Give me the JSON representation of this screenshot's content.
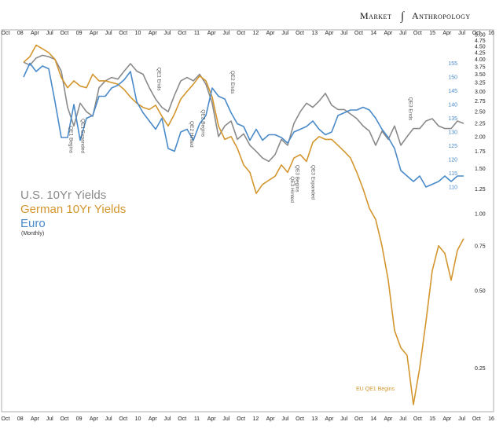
{
  "header": {
    "brand_left": "Market",
    "brand_right": "Anthropology"
  },
  "legend": {
    "us": "U.S. 10Yr Yields",
    "de": "German 10Yr Yields",
    "eu": "Euro",
    "sub": "(Monthly)"
  },
  "chart_data": {
    "type": "line",
    "x_ticks": [
      "Oct",
      "08",
      "Apr",
      "Jul",
      "Oct",
      "09",
      "Apr",
      "Jul",
      "Oct",
      "10",
      "Apr",
      "Jul",
      "Oct",
      "11",
      "Apr",
      "Jul",
      "Oct",
      "12",
      "Apr",
      "Jul",
      "Oct",
      "13",
      "Apr",
      "Jul",
      "Oct",
      "14",
      "Apr",
      "Jul",
      "Oct",
      "15",
      "Apr",
      "Jul",
      "Oct",
      "16"
    ],
    "y_left_ticks": [
      "5.00",
      "4.75",
      "4.50",
      "4.25",
      "4.00",
      "3.75",
      "3.50",
      "3.25",
      "3.00",
      "2.75",
      "2.50",
      "2.25",
      "2.00",
      "1.75",
      "1.50",
      "1.25",
      "1.00",
      "0.75",
      "0.50",
      "0.25"
    ],
    "y_left_scale": "log",
    "y_left_range": [
      0.2,
      5.0
    ],
    "y_right_ticks": [
      "155",
      "150",
      "145",
      "140",
      "135",
      "130",
      "125",
      "120",
      "115",
      "110"
    ],
    "y_right_range": [
      108,
      158
    ],
    "annotations": [
      {
        "text": "QE1 Begins",
        "x": 22.0,
        "y": 2.2
      },
      {
        "text": "QE1 Expanded",
        "x": 27.5,
        "y": 2.35
      },
      {
        "text": "QE1 Ends",
        "x": 64.0,
        "y": 3.72
      },
      {
        "text": "QE2 Hinted",
        "x": 79.5,
        "y": 2.3
      },
      {
        "text": "QE2 Begins",
        "x": 85.0,
        "y": 2.55
      },
      {
        "text": "QE2 Ends",
        "x": 99.0,
        "y": 3.62
      },
      {
        "text": "QE3 Hinted",
        "x": 127.5,
        "y": 1.4
      },
      {
        "text": "QE3 Begins",
        "x": 130.0,
        "y": 1.55
      },
      {
        "text": "QE3 Expanded",
        "x": 137.5,
        "y": 1.55
      },
      {
        "text": "QE3 Ends",
        "x": 184.0,
        "y": 2.85
      },
      {
        "text": "EU QE1 Begins",
        "x": 180.0,
        "y": 0.21
      }
    ],
    "series": [
      {
        "name": "U.S. 10Yr Yields",
        "color": "#8a8a8a",
        "axis": "left",
        "x": [
          0,
          3,
          6,
          9,
          12,
          15,
          18,
          21,
          24,
          27,
          30,
          33,
          36,
          39,
          42,
          45,
          48,
          51,
          54,
          57,
          60,
          63,
          66,
          69,
          72,
          75,
          78,
          81,
          84,
          87,
          90,
          93,
          96,
          99,
          102,
          105,
          108,
          111,
          114,
          117,
          120,
          123,
          126,
          129,
          132,
          135,
          138,
          141,
          144,
          147,
          150,
          153,
          156,
          159,
          162,
          165,
          168,
          171,
          174,
          177,
          180,
          183,
          186,
          189,
          192,
          195,
          198,
          201,
          204,
          207,
          210
        ],
        "y": [
          3.9,
          3.8,
          4.05,
          4.15,
          4.1,
          4.0,
          3.6,
          2.6,
          2.2,
          2.7,
          2.5,
          2.4,
          3.1,
          3.3,
          3.4,
          3.35,
          3.6,
          3.85,
          3.6,
          3.5,
          3.1,
          2.8,
          2.6,
          2.5,
          2.9,
          3.3,
          3.4,
          3.3,
          3.5,
          3.2,
          2.7,
          2.0,
          2.2,
          2.3,
          1.95,
          2.05,
          1.85,
          1.75,
          1.65,
          1.6,
          1.7,
          1.95,
          1.85,
          2.25,
          2.5,
          2.7,
          2.6,
          2.75,
          2.95,
          2.65,
          2.55,
          2.55,
          2.45,
          2.35,
          2.2,
          2.1,
          1.85,
          2.1,
          1.95,
          2.2,
          1.85,
          2.0,
          2.15,
          2.15,
          2.3,
          2.35,
          2.2,
          2.15,
          2.15,
          2.3,
          2.25
        ]
      },
      {
        "name": "German 10Yr Yields",
        "color": "#d3962e",
        "axis": "left",
        "x": [
          0,
          3,
          6,
          9,
          12,
          15,
          18,
          21,
          24,
          27,
          30,
          33,
          36,
          39,
          42,
          45,
          48,
          51,
          54,
          57,
          60,
          63,
          66,
          69,
          72,
          75,
          78,
          81,
          84,
          87,
          90,
          93,
          96,
          99,
          102,
          105,
          108,
          111,
          114,
          117,
          120,
          123,
          126,
          129,
          132,
          135,
          138,
          141,
          144,
          147,
          150,
          153,
          156,
          159,
          162,
          165,
          168,
          171,
          174,
          177,
          180,
          183,
          186,
          189,
          192,
          195,
          198,
          201,
          204,
          207,
          210
        ],
        "y": [
          3.9,
          4.1,
          4.55,
          4.4,
          4.25,
          4.0,
          3.4,
          3.1,
          3.3,
          3.15,
          3.1,
          3.5,
          3.3,
          3.3,
          3.25,
          3.2,
          3.05,
          2.85,
          2.7,
          2.6,
          2.55,
          2.65,
          2.4,
          2.2,
          2.45,
          2.8,
          3.0,
          3.2,
          3.45,
          3.3,
          2.85,
          2.2,
          1.95,
          2.0,
          1.8,
          1.55,
          1.45,
          1.2,
          1.3,
          1.35,
          1.4,
          1.55,
          1.45,
          1.65,
          1.7,
          1.6,
          1.9,
          2.0,
          1.95,
          1.95,
          1.85,
          1.75,
          1.65,
          1.45,
          1.25,
          1.05,
          0.95,
          0.75,
          0.55,
          0.35,
          0.3,
          0.28,
          0.18,
          0.25,
          0.38,
          0.6,
          0.75,
          0.7,
          0.55,
          0.72,
          0.8
        ]
      },
      {
        "name": "Euro",
        "color": "#4a8ac9",
        "axis": "right",
        "x": [
          0,
          3,
          6,
          9,
          12,
          15,
          18,
          21,
          24,
          27,
          30,
          33,
          36,
          39,
          42,
          45,
          48,
          51,
          54,
          57,
          60,
          63,
          66,
          69,
          72,
          75,
          78,
          81,
          84,
          87,
          90,
          93,
          96,
          99,
          102,
          105,
          108,
          111,
          114,
          117,
          120,
          123,
          126,
          129,
          132,
          135,
          138,
          141,
          144,
          147,
          150,
          153,
          156,
          159,
          162,
          165,
          168,
          171,
          174,
          177,
          180,
          183,
          186,
          189,
          192,
          195,
          198,
          201,
          204,
          207,
          210
        ],
        "y": [
          150,
          155,
          152,
          154,
          153,
          141,
          128,
          128,
          140,
          127,
          135,
          136,
          143,
          143,
          146,
          147,
          149,
          152,
          141,
          137,
          134,
          131,
          135,
          124,
          123,
          130,
          131,
          127,
          133,
          136,
          146,
          143,
          142,
          137,
          133,
          132,
          127,
          131,
          127,
          129,
          129,
          128,
          126,
          130,
          131,
          132,
          134,
          131,
          129,
          130,
          136,
          137,
          138,
          138,
          139,
          138,
          135,
          131,
          128,
          124,
          116,
          114,
          112,
          114,
          110,
          111,
          112,
          114,
          112,
          114,
          114
        ]
      }
    ]
  }
}
